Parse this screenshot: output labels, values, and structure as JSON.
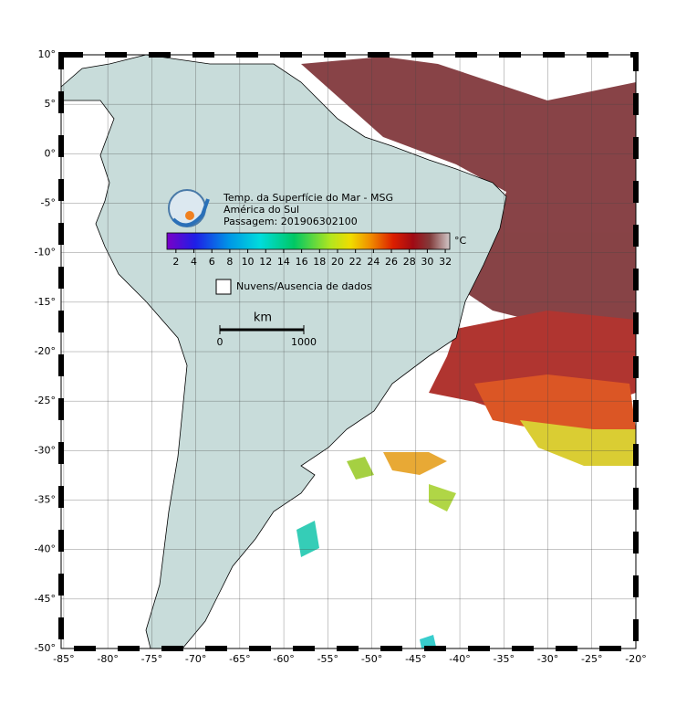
{
  "map": {
    "title": "Temp. da Superfície do Mar - MSG",
    "region": "América do Sul",
    "pass": "Passagem: 201906302100",
    "lonlim": [
      -85.3,
      -20
    ],
    "latlim": [
      -50,
      10
    ],
    "lon_ticks": [
      {
        "value": -85,
        "label": "-85°"
      },
      {
        "value": -80,
        "label": "-80°"
      },
      {
        "value": -75,
        "label": "-75°"
      },
      {
        "value": -70,
        "label": "-70°"
      },
      {
        "value": -65,
        "label": "-65°"
      },
      {
        "value": -60,
        "label": "-60°"
      },
      {
        "value": -55,
        "label": "-55°"
      },
      {
        "value": -50,
        "label": "-50°"
      },
      {
        "value": -45,
        "label": "-45°"
      },
      {
        "value": -40,
        "label": "-40°"
      },
      {
        "value": -35,
        "label": "-35°"
      },
      {
        "value": -30,
        "label": "-30°"
      },
      {
        "value": -25,
        "label": "-25°"
      },
      {
        "value": -20,
        "label": "-20°"
      }
    ],
    "lat_ticks": [
      {
        "value": 10,
        "label": "10°"
      },
      {
        "value": 5,
        "label": "5°"
      },
      {
        "value": 0,
        "label": "0°"
      },
      {
        "value": -5,
        "label": "-5°"
      },
      {
        "value": -10,
        "label": "-10°"
      },
      {
        "value": -15,
        "label": "-15°"
      },
      {
        "value": -20,
        "label": "-20°"
      },
      {
        "value": -25,
        "label": "-25°"
      },
      {
        "value": -30,
        "label": "-30°"
      },
      {
        "value": -35,
        "label": "-35°"
      },
      {
        "value": -40,
        "label": "-40°"
      },
      {
        "value": -45,
        "label": "-45°"
      },
      {
        "value": -50,
        "label": "-50°"
      }
    ],
    "colorbar": {
      "range": [
        1,
        32.5
      ],
      "ticks": [
        2,
        4,
        6,
        8,
        10,
        12,
        14,
        16,
        18,
        20,
        22,
        24,
        26,
        28,
        30,
        32
      ],
      "unit": "°C"
    },
    "no_data_label": "Nuvens/Ausencia de dados",
    "scale": {
      "unit": "km",
      "ticks": [
        0,
        1000
      ]
    }
  }
}
